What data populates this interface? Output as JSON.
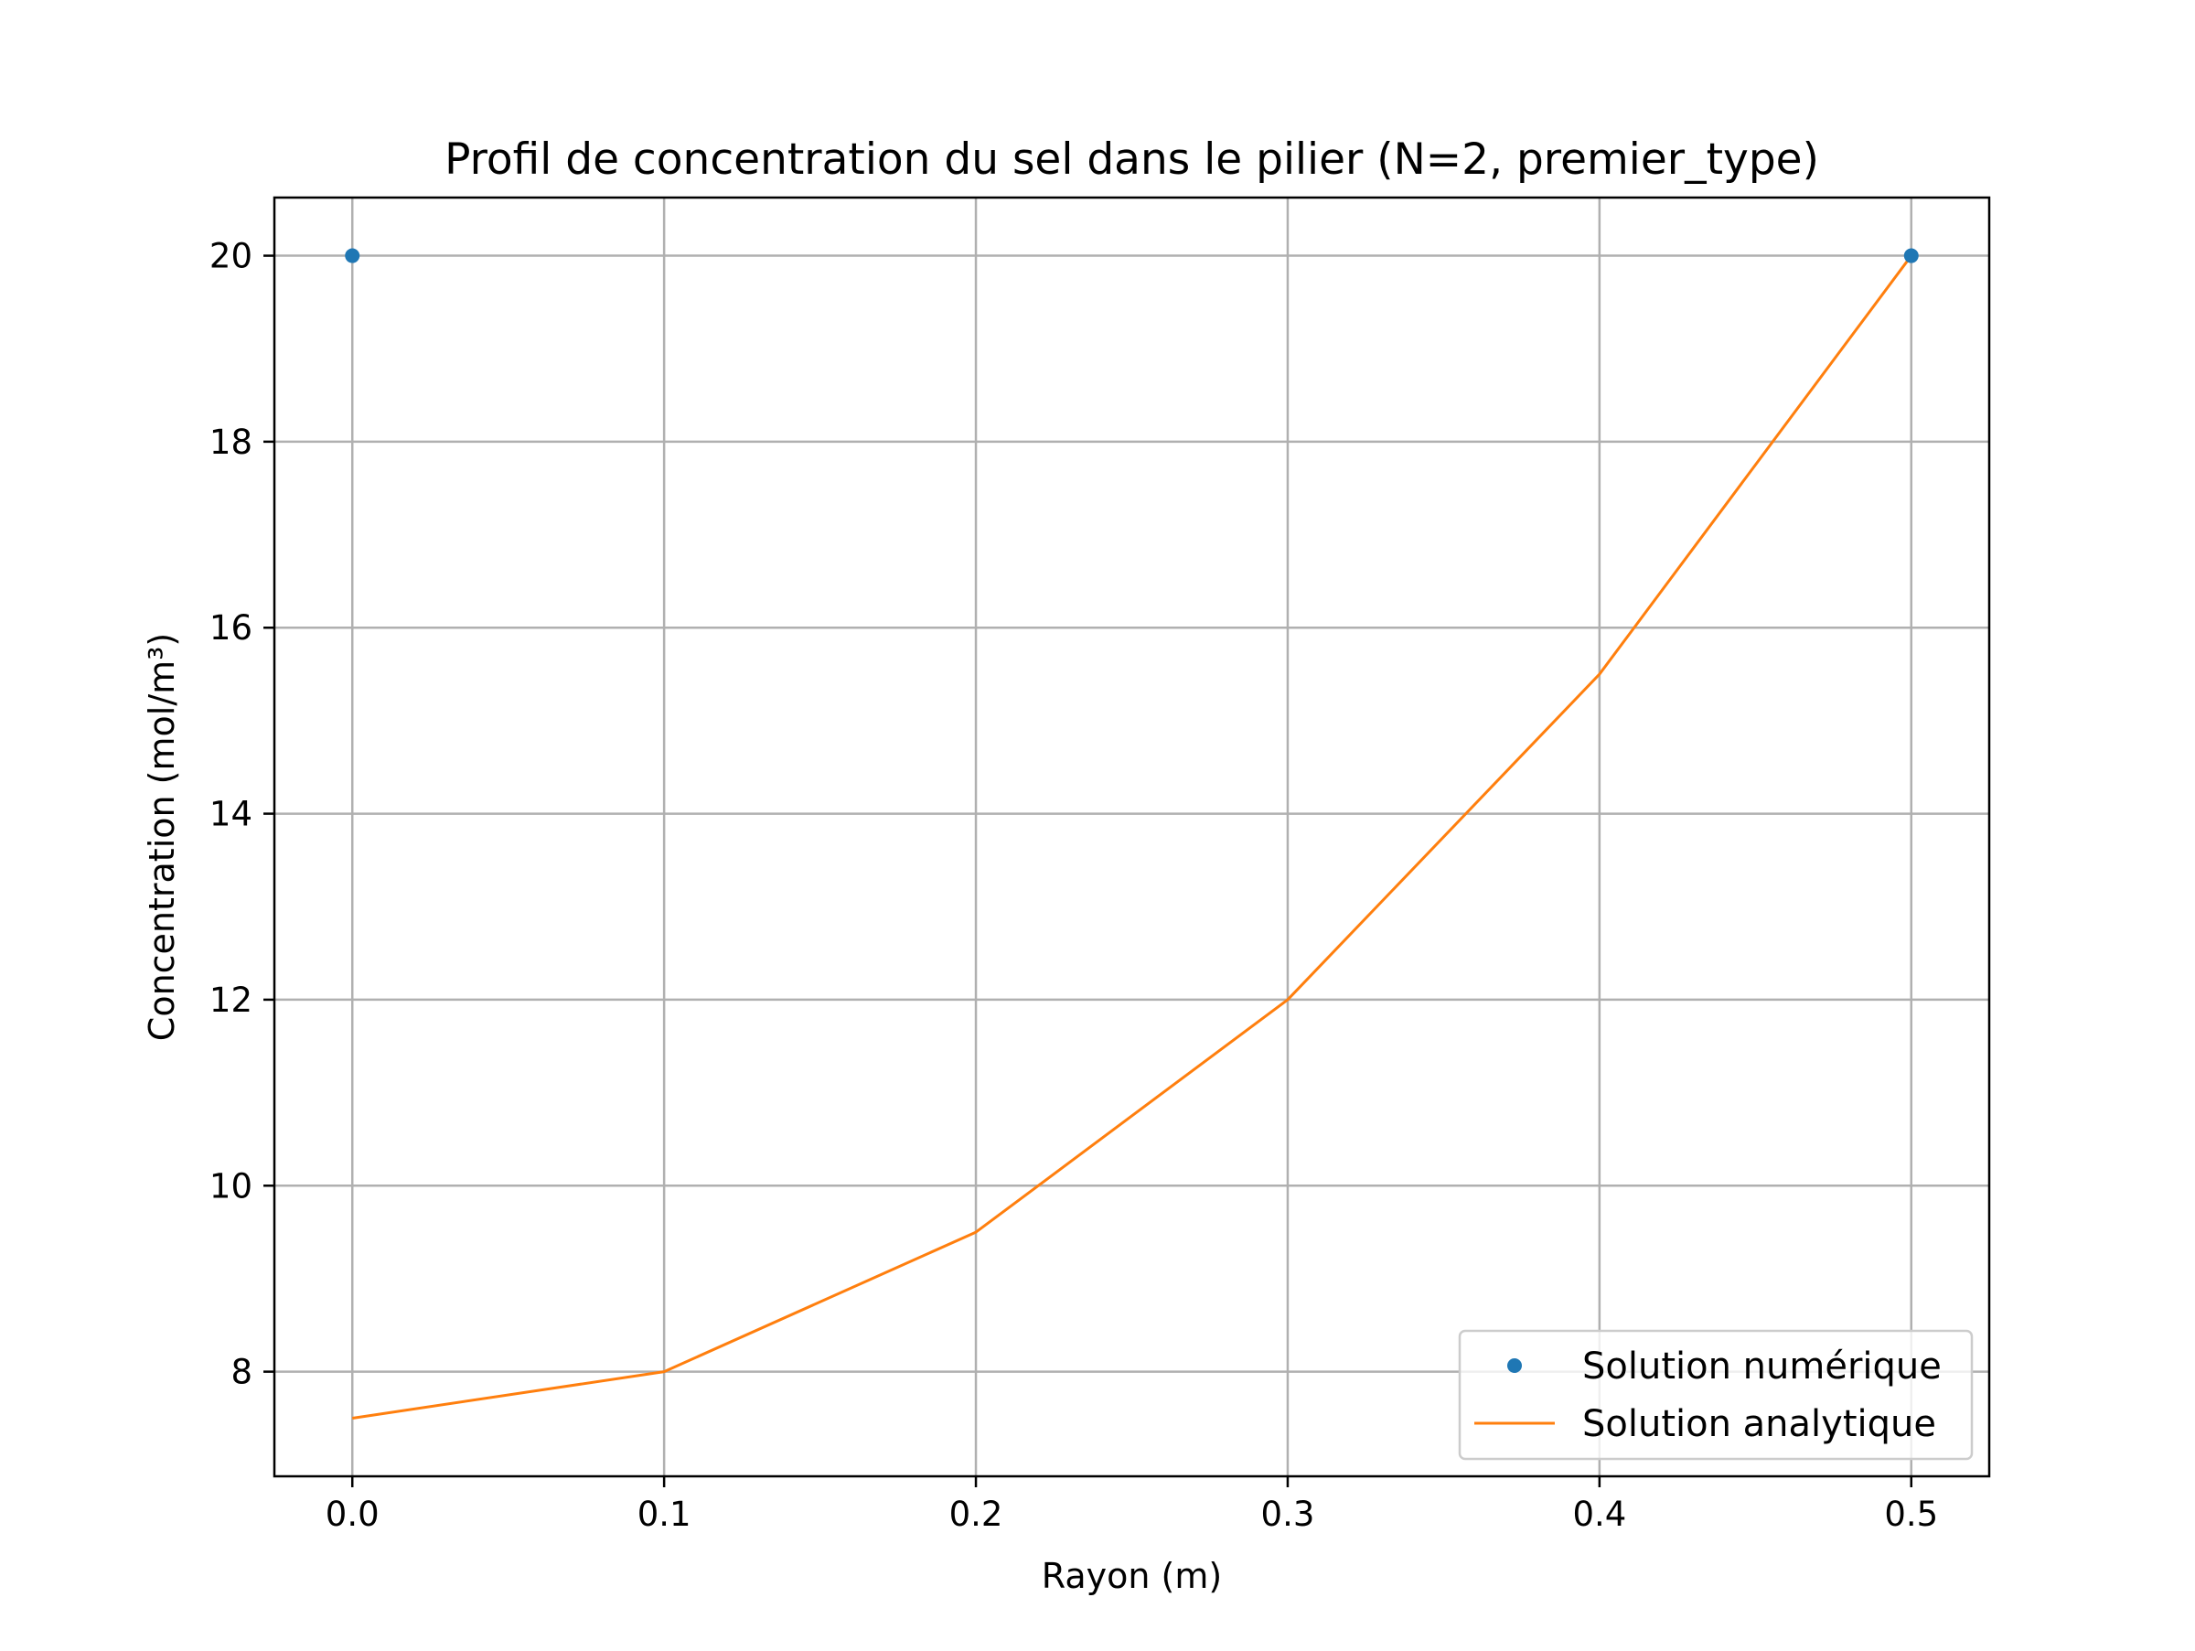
{
  "chart_data": {
    "type": "line",
    "title": "Profil de concentration du sel dans le pilier (N=2, premier_type)",
    "xlabel": "Rayon (m)",
    "ylabel": "Concentration (mol/m³)",
    "xlim": [
      -0.025,
      0.525
    ],
    "ylim": [
      6.875,
      20.625
    ],
    "grid": true,
    "legend_position": "lower right",
    "x_ticks": [
      {
        "value": 0.0,
        "label": "0.0"
      },
      {
        "value": 0.1,
        "label": "0.1"
      },
      {
        "value": 0.2,
        "label": "0.2"
      },
      {
        "value": 0.3,
        "label": "0.3"
      },
      {
        "value": 0.4,
        "label": "0.4"
      },
      {
        "value": 0.5,
        "label": "0.5"
      }
    ],
    "y_ticks": [
      {
        "value": 8,
        "label": "8"
      },
      {
        "value": 10,
        "label": "10"
      },
      {
        "value": 12,
        "label": "12"
      },
      {
        "value": 14,
        "label": "14"
      },
      {
        "value": 16,
        "label": "16"
      },
      {
        "value": 18,
        "label": "18"
      },
      {
        "value": 20,
        "label": "20"
      }
    ],
    "series": [
      {
        "name": "Solution numérique",
        "style": "markers",
        "color": "#1f77b4",
        "x": [
          0.0,
          0.5
        ],
        "y": [
          20,
          20
        ]
      },
      {
        "name": "Solution analytique",
        "style": "line",
        "color": "#ff7f0e",
        "x": [
          0.0,
          0.1,
          0.2,
          0.3,
          0.4,
          0.5
        ],
        "y": [
          7.5,
          8.0,
          9.5,
          12.0,
          15.5,
          20.0
        ]
      }
    ]
  }
}
